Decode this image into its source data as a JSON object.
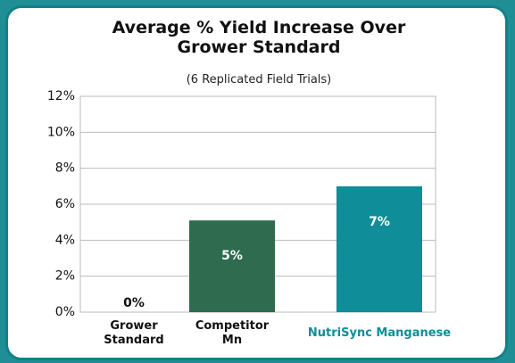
{
  "chart_data": {
    "type": "bar",
    "title": "Average % Yield Increase Over Grower Standard",
    "subtitle": "(6 Replicated Field Trials)",
    "categories": [
      "Grower Standard",
      "Competitor Mn",
      "NutriSync Manganese"
    ],
    "values": [
      0,
      5.1,
      7.0
    ],
    "value_labels": [
      "0%",
      "5%",
      "7%"
    ],
    "colors": [
      "#2e6b4f",
      "#2e6b4f",
      "#0f8d98"
    ],
    "ylim": [
      0,
      12
    ],
    "yticks": [
      {
        "value": 0,
        "label": "0%"
      },
      {
        "value": 2,
        "label": "2%"
      },
      {
        "value": 4,
        "label": "4%"
      },
      {
        "value": 6,
        "label": "6%"
      },
      {
        "value": 8,
        "label": "8%"
      },
      {
        "value": 10,
        "label": "10%"
      },
      {
        "value": 12,
        "label": "12%"
      }
    ],
    "grid": true
  }
}
